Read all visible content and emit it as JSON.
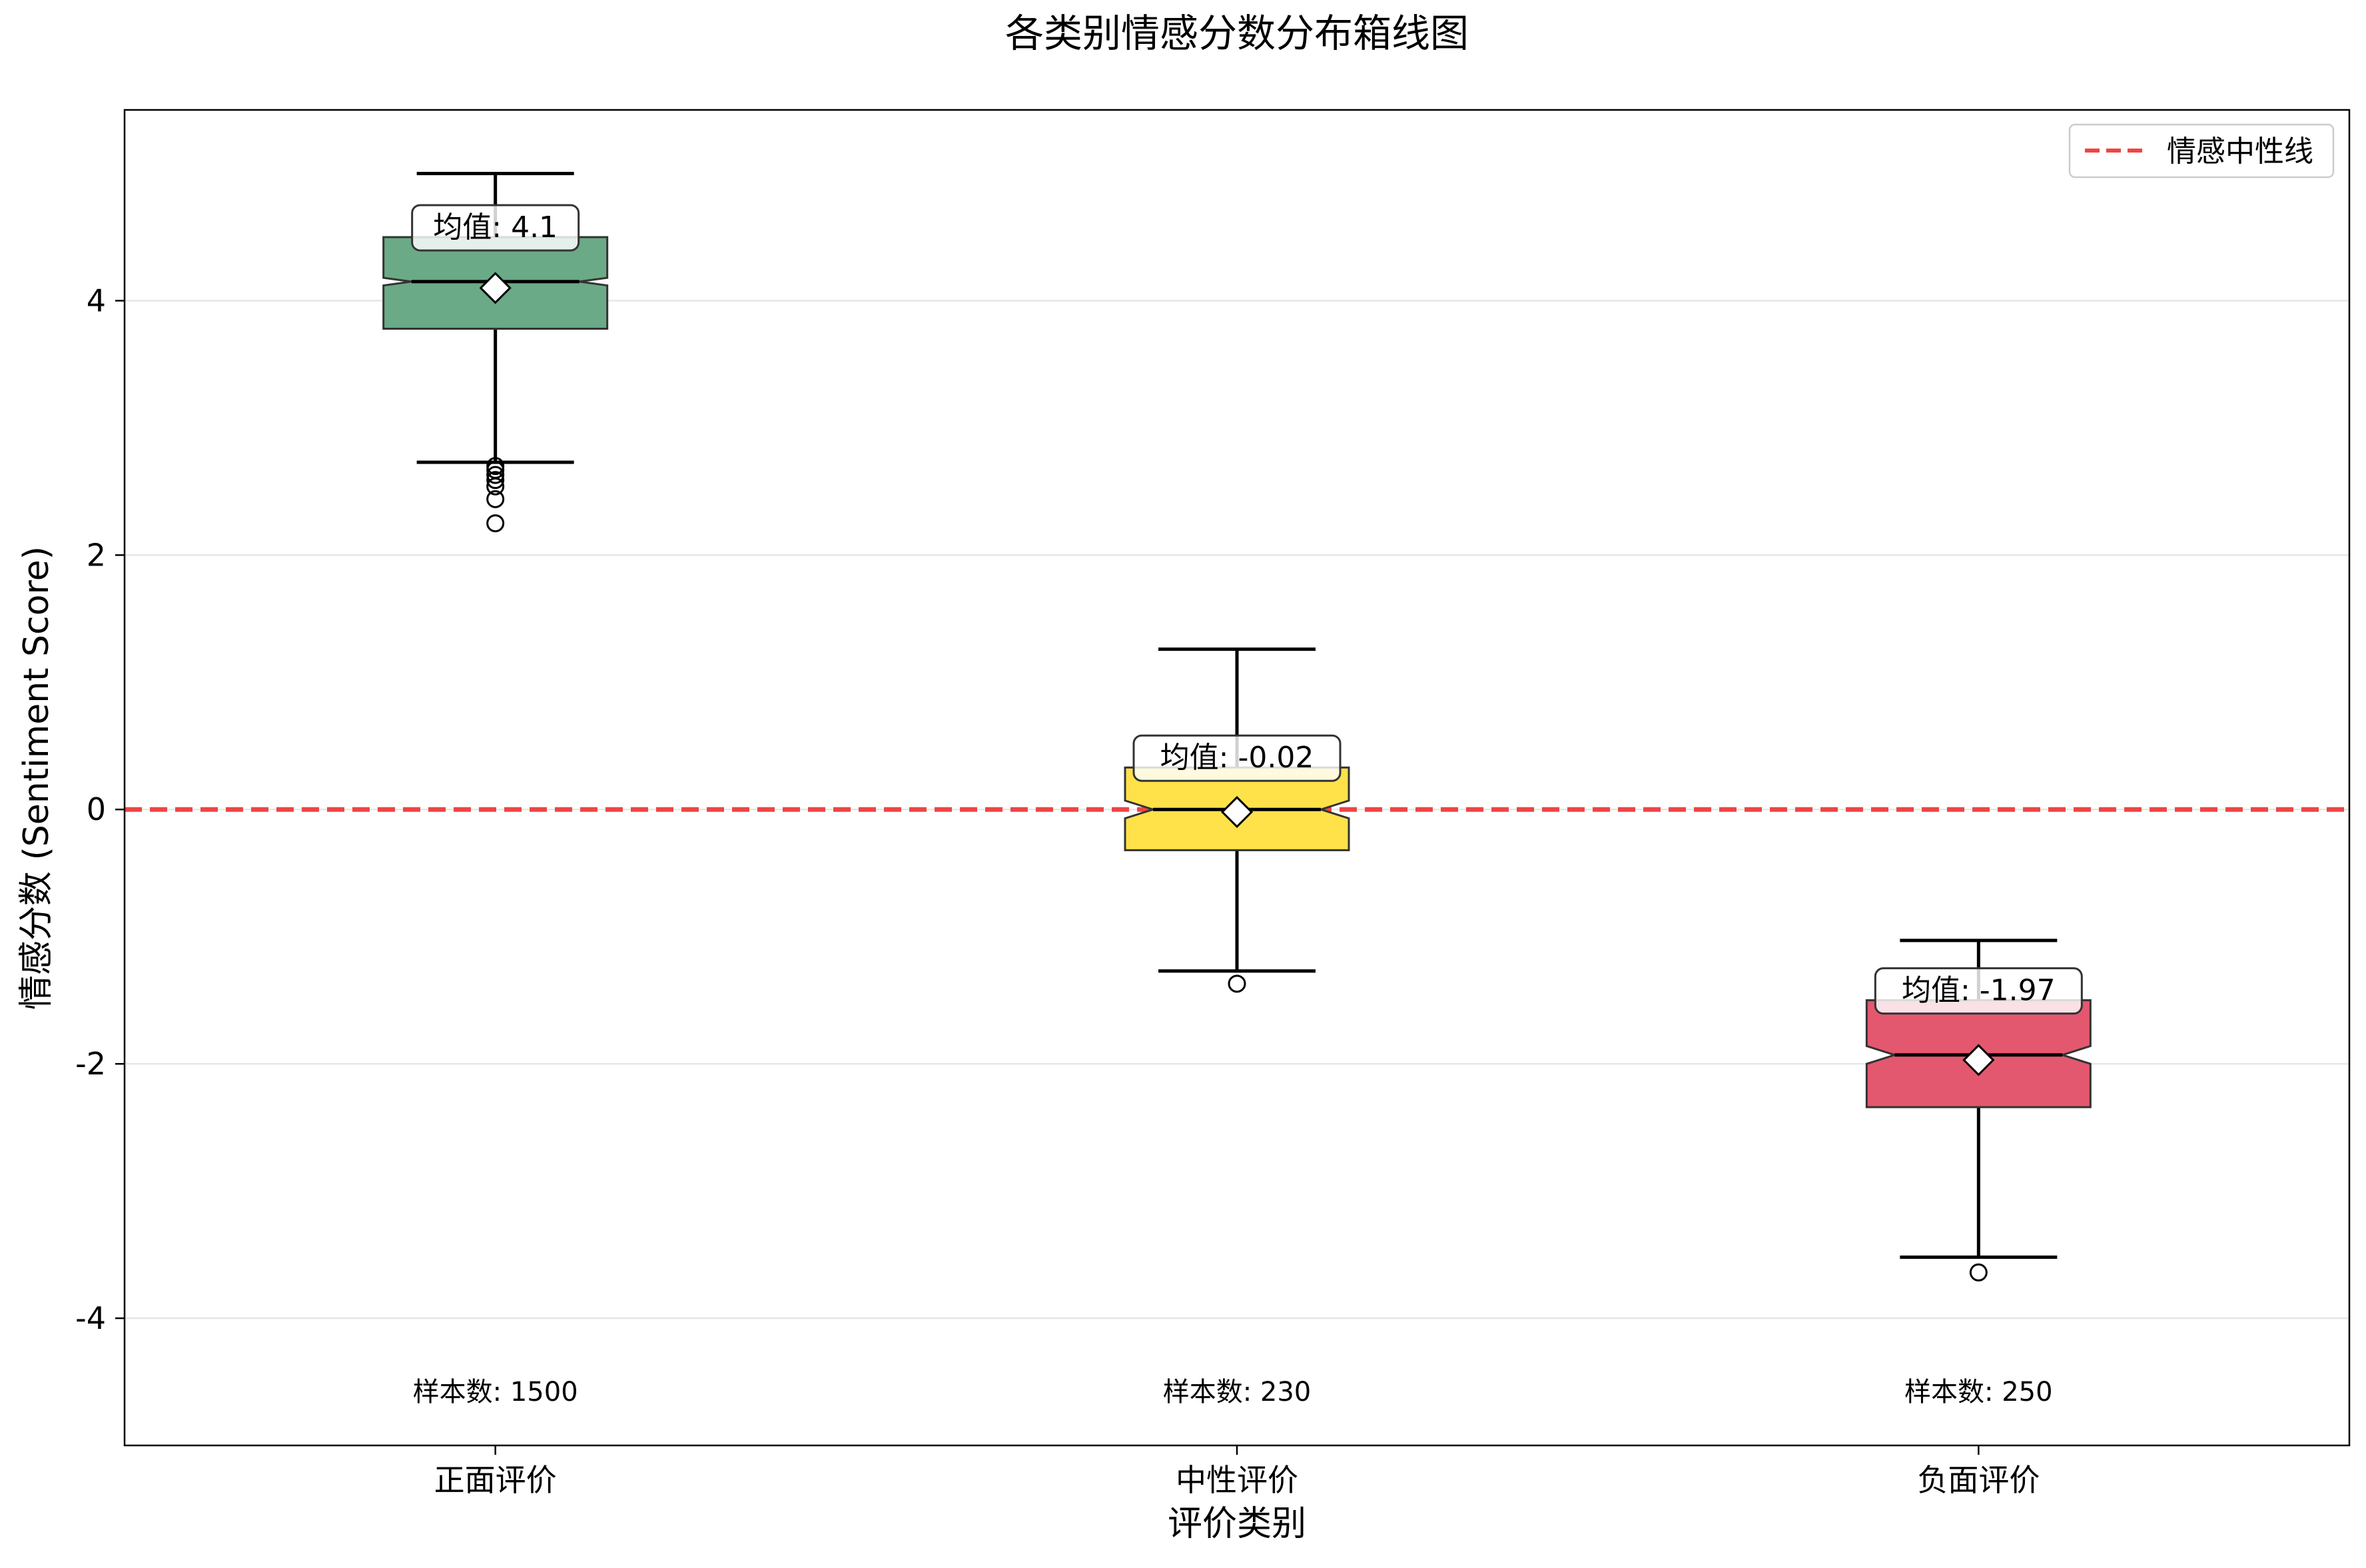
{
  "chart_data": {
    "type": "box",
    "title": "各类别情感分数分布箱线图",
    "xlabel": "评价类别",
    "ylabel": "情感分数 (Sentiment Score)",
    "ylim": [
      -5,
      5.5
    ],
    "yticks": [
      -4,
      -2,
      0,
      2,
      4
    ],
    "ytick_labels": [
      "-4",
      "-2",
      "0",
      "2",
      "4"
    ],
    "grid": "horizontal",
    "legend": {
      "position": "top-right",
      "entries": [
        {
          "label": "情感中性线",
          "color": "#f04444",
          "style": "dashed"
        }
      ]
    },
    "reference_line": {
      "y": 0,
      "label": "情感中性线",
      "color": "#f04444"
    },
    "categories": [
      "正面评价",
      "中性评价",
      "负面评价"
    ],
    "boxes": [
      {
        "category": "正面评价",
        "color": "#6aaa86",
        "whisker_low": 2.73,
        "q1": 3.78,
        "median": 4.15,
        "q3": 4.5,
        "whisker_high": 5.0,
        "notch_low": 4.12,
        "notch_high": 4.18,
        "mean": 4.1,
        "outliers": [
          2.25,
          2.44,
          2.54,
          2.59,
          2.63,
          2.67,
          2.7
        ],
        "mean_label": "均值: 4.1",
        "count_label": "样本数: 1500"
      },
      {
        "category": "中性评价",
        "color": "#ffe14a",
        "whisker_low": -1.27,
        "q1": -0.32,
        "median": 0.0,
        "q3": 0.33,
        "whisker_high": 1.26,
        "notch_low": -0.07,
        "notch_high": 0.07,
        "mean": -0.02,
        "outliers": [
          -1.37
        ],
        "mean_label": "均值: -0.02",
        "count_label": "样本数: 230"
      },
      {
        "category": "负面评价",
        "color": "#e3586f",
        "whisker_low": -3.52,
        "q1": -2.34,
        "median": -1.93,
        "q3": -1.5,
        "whisker_high": -1.03,
        "notch_low": -2.0,
        "notch_high": -1.86,
        "mean": -1.97,
        "outliers": [
          -3.64
        ],
        "mean_label": "均值: -1.97",
        "count_label": "样本数: 250"
      }
    ]
  }
}
